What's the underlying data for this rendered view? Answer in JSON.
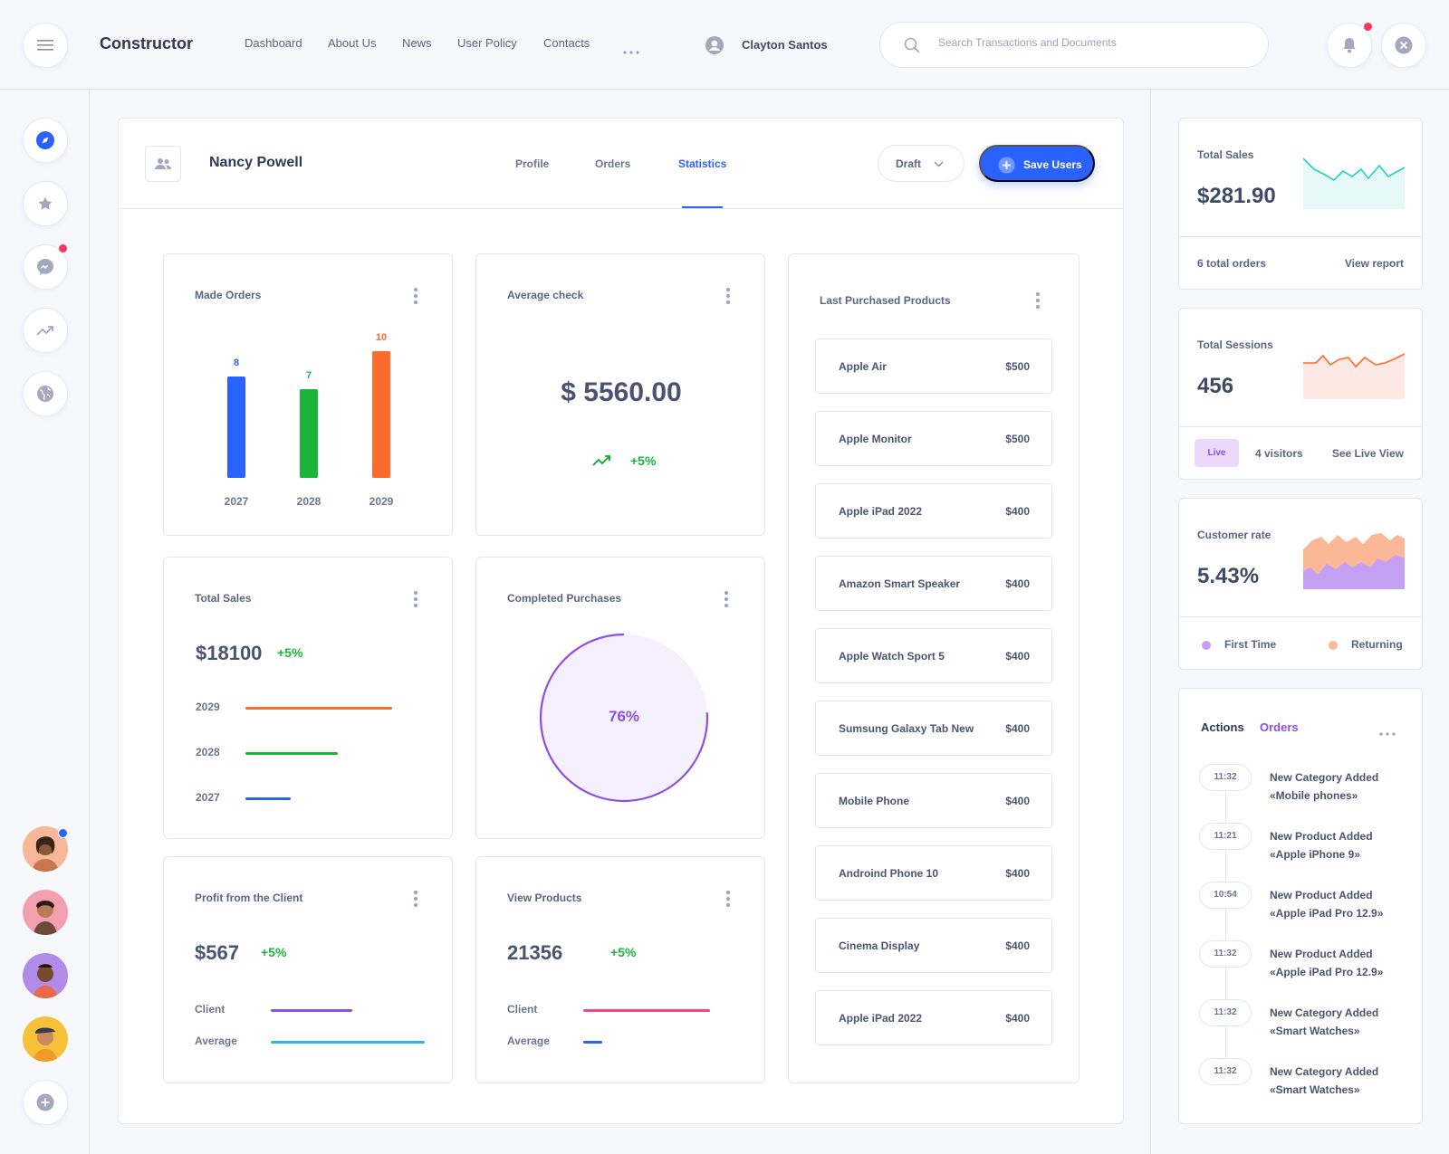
{
  "header": {
    "brand": "Constructor",
    "nav": [
      "Dashboard",
      "About Us",
      "News",
      "User Policy",
      "Contacts"
    ],
    "user_name": "Clayton Santos",
    "search_placeholder": "Search Transactions and Documents"
  },
  "main": {
    "title": "Nancy Powell",
    "tabs": [
      "Profile",
      "Orders",
      "Statistics"
    ],
    "active_tab": "Statistics",
    "draft_label": "Draft",
    "save_label": "Save Users"
  },
  "made_orders": {
    "title": "Made Orders",
    "chart_data": {
      "type": "bar",
      "categories": [
        "2027",
        "2028",
        "2029"
      ],
      "values": [
        8,
        7,
        10
      ],
      "colors": [
        "#2962ff",
        "#1bb53a",
        "#ff6b2c"
      ]
    }
  },
  "average_check": {
    "title": "Average check",
    "value": "$ 5560.00",
    "change": "+5%"
  },
  "total_sales_card": {
    "title": "Total Sales",
    "value": "$18100",
    "change": "+5%",
    "rows": [
      {
        "label": "2029",
        "color": "#ff6b2c",
        "fraction": 1.0
      },
      {
        "label": "2028",
        "color": "#1bb53a",
        "fraction": 0.63
      },
      {
        "label": "2027",
        "color": "#2962ff",
        "fraction": 0.31
      }
    ]
  },
  "completed_purchases": {
    "title": "Completed Purchases",
    "percent_label": "76%",
    "percent": 76
  },
  "profit_client": {
    "title": "Profit from the Client",
    "value": "$567",
    "change": "+5%",
    "rows": [
      {
        "label": "Client",
        "color": "#8e4ee6",
        "fraction": 0.53
      },
      {
        "label": "Average",
        "color": "#2bb5f0",
        "fraction": 1.0
      }
    ]
  },
  "view_products": {
    "title": "View Products",
    "value": "21356",
    "change": "+5%",
    "rows": [
      {
        "label": "Client",
        "color": "#e94b7c",
        "fraction": 1.0
      },
      {
        "label": "Average",
        "color": "#2962ff",
        "fraction": 0.15
      }
    ]
  },
  "last_purchased": {
    "title": "Last Purchased Products",
    "items": [
      {
        "name": "Apple Air",
        "price": "$500"
      },
      {
        "name": "Apple Monitor",
        "price": "$500"
      },
      {
        "name": "Apple iPad 2022",
        "price": "$400"
      },
      {
        "name": "Amazon Smart Speaker",
        "price": "$400"
      },
      {
        "name": "Apple Watch Sport 5",
        "price": "$400"
      },
      {
        "name": "Sumsung Galaxy Tab New",
        "price": "$400"
      },
      {
        "name": "Mobile Phone",
        "price": "$400"
      },
      {
        "name": "Androind Phone 10",
        "price": "$400"
      },
      {
        "name": "Cinema Display",
        "price": "$400"
      },
      {
        "name": "Apple iPad 2022",
        "price": "$400"
      }
    ]
  },
  "right": {
    "total_sales": {
      "title": "Total Sales",
      "value": "$281.90",
      "orders": "6 total orders",
      "link": "View report"
    },
    "total_sessions": {
      "title": "Total Sessions",
      "value": "456",
      "badge": "Live",
      "visitors": "4 visitors",
      "link": "See Live View"
    },
    "customer_rate": {
      "title": "Customer rate",
      "value": "5.43%",
      "legend_first": "First Time",
      "legend_returning": "Returning"
    },
    "actions": {
      "tab_actions": "Actions",
      "tab_orders": "Orders",
      "items": [
        {
          "time": "11:32",
          "title": "New Category Added",
          "sub": "«Mobile phones»"
        },
        {
          "time": "11:21",
          "title": "New Product Added",
          "sub": "«Apple iPhone 9»"
        },
        {
          "time": "10:54",
          "title": "New Product Added",
          "sub": "«Apple iPad Pro 12.9»"
        },
        {
          "time": "11:32",
          "title": "New Product Added",
          "sub": "«Apple iPad Pro 12.9»"
        },
        {
          "time": "11:32",
          "title": "New Category Added",
          "sub": "«Smart Watches»"
        },
        {
          "time": "11:32",
          "title": "New Category Added",
          "sub": "«Smart Watches»"
        }
      ]
    }
  },
  "colors": {
    "accent": "#2962ff",
    "green": "#1bb53a",
    "orange": "#ff6b2c",
    "purple": "#8e4ee6",
    "notification": "#f4355e"
  }
}
